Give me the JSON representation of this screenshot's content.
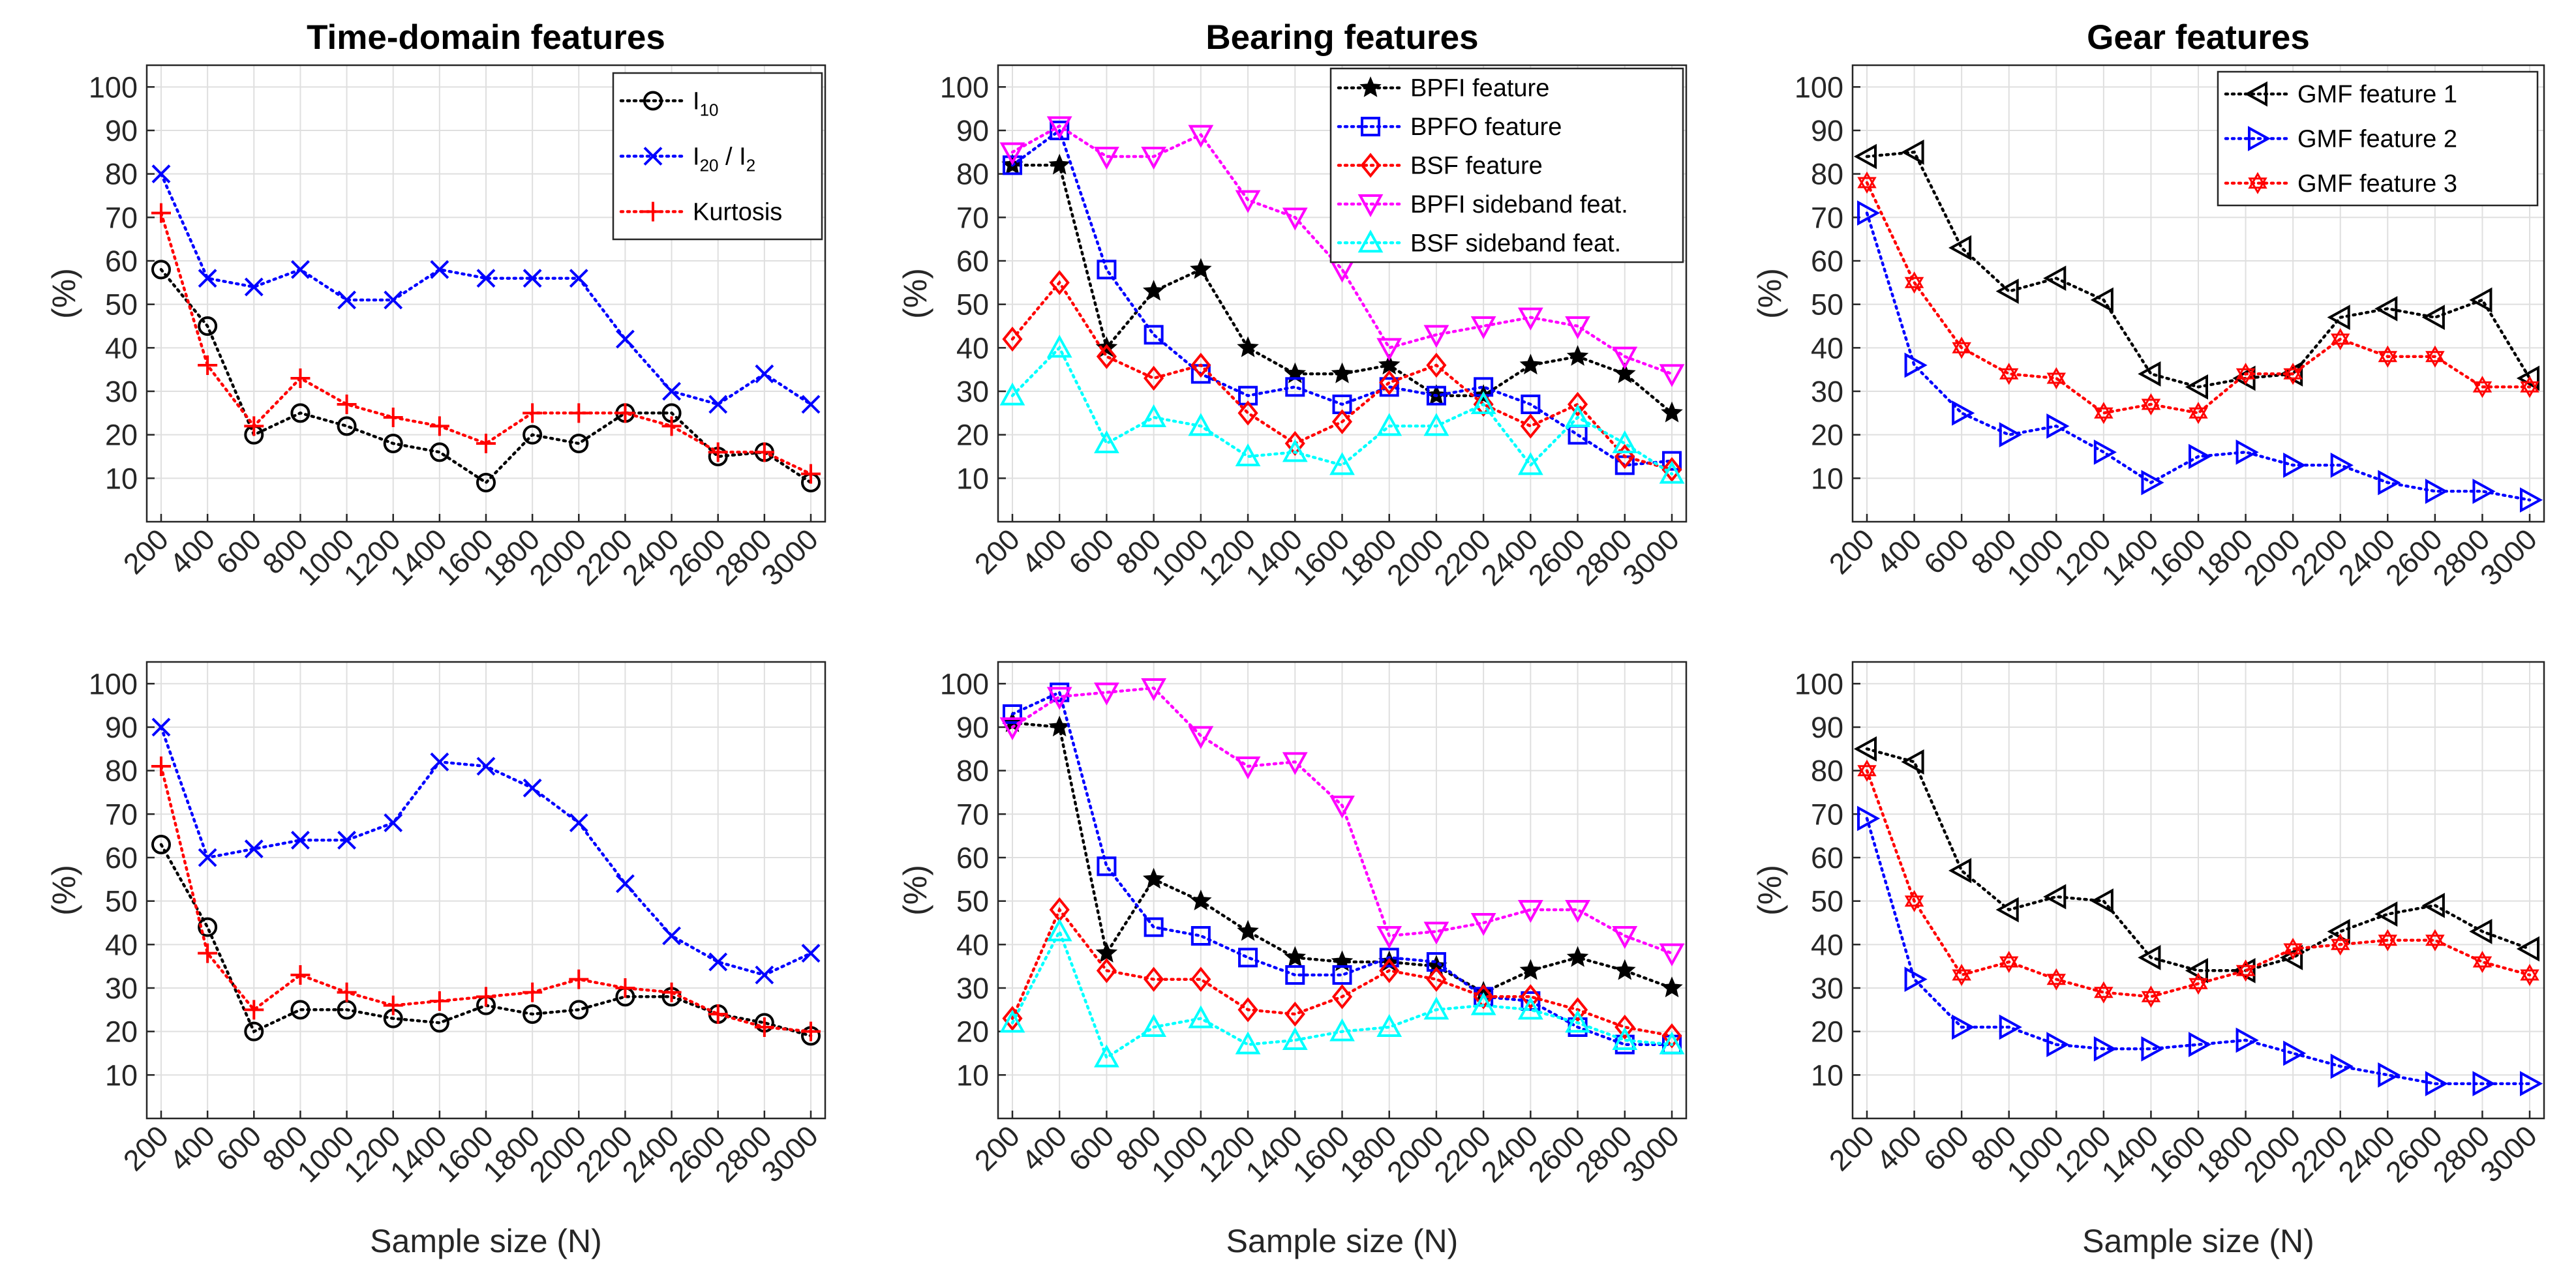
{
  "figure": {
    "xlabel": "Sample size (N)",
    "ylabel": "(%)"
  },
  "chart_data": [
    {
      "id": "time-top",
      "type": "line",
      "title": "Time-domain features",
      "xlabel": "",
      "ylabel": "(%)",
      "categories": [
        "200",
        "400",
        "600",
        "800",
        "1000",
        "1200",
        "1400",
        "1600",
        "1800",
        "2000",
        "2200",
        "2400",
        "2600",
        "2800",
        "3000"
      ],
      "yticks": [
        "10",
        "20",
        "30",
        "40",
        "50",
        "60",
        "70",
        "80",
        "90",
        "100"
      ],
      "ylim": [
        0,
        105
      ],
      "legend": "top-right",
      "series": [
        {
          "name": "I",
          "sub": "10",
          "rest": "",
          "sub2": "",
          "color": "#000000",
          "marker": "circle",
          "values": [
            58,
            45,
            20,
            25,
            22,
            18,
            16,
            9,
            20,
            18,
            25,
            25,
            15,
            16,
            9
          ]
        },
        {
          "name": "I",
          "sub": "20",
          "rest": " / I",
          "sub2": "2",
          "color": "#0000FF",
          "marker": "x",
          "values": [
            80,
            56,
            54,
            58,
            51,
            51,
            58,
            56,
            56,
            56,
            42,
            30,
            27,
            34,
            27
          ]
        },
        {
          "name": "Kurtosis",
          "sub": "",
          "rest": "",
          "sub2": "",
          "color": "#FF0000",
          "marker": "plus",
          "values": [
            71,
            36,
            22,
            33,
            27,
            24,
            22,
            18,
            25,
            25,
            25,
            22,
            16,
            16,
            11
          ]
        }
      ]
    },
    {
      "id": "bearing-top",
      "type": "line",
      "title": "Bearing features",
      "xlabel": "",
      "ylabel": "(%)",
      "categories": [
        "200",
        "400",
        "600",
        "800",
        "1000",
        "1200",
        "1400",
        "1600",
        "1800",
        "2000",
        "2200",
        "2400",
        "2600",
        "2800",
        "3000"
      ],
      "yticks": [
        "10",
        "20",
        "30",
        "40",
        "50",
        "60",
        "70",
        "80",
        "90",
        "100"
      ],
      "ylim": [
        0,
        105
      ],
      "legend": "top-right",
      "series": [
        {
          "name": "BPFI feature",
          "color": "#000000",
          "marker": "star",
          "values": [
            82,
            82,
            40,
            53,
            58,
            40,
            34,
            34,
            36,
            29,
            29,
            36,
            38,
            34,
            25
          ]
        },
        {
          "name": "BPFO feature",
          "color": "#0000FF",
          "marker": "square",
          "values": [
            82,
            90,
            58,
            43,
            34,
            29,
            31,
            27,
            31,
            29,
            31,
            27,
            20,
            13,
            14
          ]
        },
        {
          "name": "BSF feature",
          "color": "#FF0000",
          "marker": "diamond",
          "values": [
            42,
            55,
            38,
            33,
            36,
            25,
            18,
            23,
            32,
            36,
            27,
            22,
            27,
            15,
            12
          ]
        },
        {
          "name": "BPFI sideband feat.",
          "color": "#FF00FF",
          "marker": "triangle-down",
          "values": [
            85,
            91,
            84,
            84,
            89,
            74,
            70,
            58,
            40,
            43,
            45,
            47,
            45,
            38,
            34
          ]
        },
        {
          "name": "BSF sideband feat.",
          "color": "#00FFFF",
          "marker": "triangle-up",
          "values": [
            29,
            40,
            18,
            24,
            22,
            15,
            16,
            13,
            22,
            22,
            27,
            13,
            24,
            18,
            11
          ]
        }
      ]
    },
    {
      "id": "gear-top",
      "type": "line",
      "title": "Gear features",
      "xlabel": "",
      "ylabel": "(%)",
      "categories": [
        "200",
        "400",
        "600",
        "800",
        "1000",
        "1200",
        "1400",
        "1600",
        "1800",
        "2000",
        "2200",
        "2400",
        "2600",
        "2800",
        "3000"
      ],
      "yticks": [
        "10",
        "20",
        "30",
        "40",
        "50",
        "60",
        "70",
        "80",
        "90",
        "100"
      ],
      "ylim": [
        0,
        105
      ],
      "legend": "top-right",
      "series": [
        {
          "name": "GMF feature 1",
          "color": "#000000",
          "marker": "triangle-left",
          "values": [
            84,
            85,
            63,
            53,
            56,
            51,
            34,
            31,
            33,
            34,
            47,
            49,
            47,
            51,
            33
          ]
        },
        {
          "name": "GMF feature 2",
          "color": "#0000FF",
          "marker": "triangle-right",
          "values": [
            71,
            36,
            25,
            20,
            22,
            16,
            9,
            15,
            16,
            13,
            13,
            9,
            7,
            7,
            5
          ]
        },
        {
          "name": "GMF feature 3",
          "color": "#FF0000",
          "marker": "hexagram",
          "values": [
            78,
            55,
            40,
            34,
            33,
            25,
            27,
            25,
            34,
            34,
            42,
            38,
            38,
            31,
            31
          ]
        }
      ]
    },
    {
      "id": "time-bottom",
      "type": "line",
      "title": "",
      "xlabel": "Sample size (N)",
      "ylabel": "(%)",
      "categories": [
        "200",
        "400",
        "600",
        "800",
        "1000",
        "1200",
        "1400",
        "1600",
        "1800",
        "2000",
        "2200",
        "2400",
        "2600",
        "2800",
        "3000"
      ],
      "yticks": [
        "10",
        "20",
        "30",
        "40",
        "50",
        "60",
        "70",
        "80",
        "90",
        "100"
      ],
      "ylim": [
        0,
        105
      ],
      "legend": "none",
      "series": [
        {
          "name": "I10",
          "color": "#000000",
          "marker": "circle",
          "values": [
            63,
            44,
            20,
            25,
            25,
            23,
            22,
            26,
            24,
            25,
            28,
            28,
            24,
            22,
            19
          ]
        },
        {
          "name": "I20 / I2",
          "color": "#0000FF",
          "marker": "x",
          "values": [
            90,
            60,
            62,
            64,
            64,
            68,
            82,
            81,
            76,
            68,
            54,
            42,
            36,
            33,
            38
          ]
        },
        {
          "name": "Kurtosis",
          "color": "#FF0000",
          "marker": "plus",
          "values": [
            81,
            38,
            25,
            33,
            29,
            26,
            27,
            28,
            29,
            32,
            30,
            29,
            24,
            21,
            20
          ]
        }
      ]
    },
    {
      "id": "bearing-bottom",
      "type": "line",
      "title": "",
      "xlabel": "Sample size (N)",
      "ylabel": "(%)",
      "categories": [
        "200",
        "400",
        "600",
        "800",
        "1000",
        "1200",
        "1400",
        "1600",
        "1800",
        "2000",
        "2200",
        "2400",
        "2600",
        "2800",
        "3000"
      ],
      "yticks": [
        "10",
        "20",
        "30",
        "40",
        "50",
        "60",
        "70",
        "80",
        "90",
        "100"
      ],
      "ylim": [
        0,
        105
      ],
      "legend": "none",
      "series": [
        {
          "name": "BPFI feature",
          "color": "#000000",
          "marker": "star",
          "values": [
            91,
            90,
            38,
            55,
            50,
            43,
            37,
            36,
            36,
            35,
            29,
            34,
            37,
            34,
            30
          ]
        },
        {
          "name": "BPFO feature",
          "color": "#0000FF",
          "marker": "square",
          "values": [
            93,
            98,
            58,
            44,
            42,
            37,
            33,
            33,
            37,
            36,
            28,
            27,
            21,
            17,
            17
          ]
        },
        {
          "name": "BSF feature",
          "color": "#FF0000",
          "marker": "diamond",
          "values": [
            23,
            48,
            34,
            32,
            32,
            25,
            24,
            28,
            34,
            32,
            28,
            28,
            25,
            21,
            19
          ]
        },
        {
          "name": "BPFI sideband feat.",
          "color": "#FF00FF",
          "marker": "triangle-down",
          "values": [
            90,
            97,
            98,
            99,
            88,
            81,
            82,
            72,
            42,
            43,
            45,
            48,
            48,
            42,
            38
          ]
        },
        {
          "name": "BSF sideband feat.",
          "color": "#00FFFF",
          "marker": "triangle-up",
          "values": [
            22,
            43,
            14,
            21,
            23,
            17,
            18,
            20,
            21,
            25,
            26,
            25,
            22,
            18,
            17
          ]
        }
      ]
    },
    {
      "id": "gear-bottom",
      "type": "line",
      "title": "",
      "xlabel": "Sample size (N)",
      "ylabel": "(%)",
      "categories": [
        "200",
        "400",
        "600",
        "800",
        "1000",
        "1200",
        "1400",
        "1600",
        "1800",
        "2000",
        "2200",
        "2400",
        "2600",
        "2800",
        "3000"
      ],
      "yticks": [
        "10",
        "20",
        "30",
        "40",
        "50",
        "60",
        "70",
        "80",
        "90",
        "100"
      ],
      "ylim": [
        0,
        105
      ],
      "legend": "none",
      "series": [
        {
          "name": "GMF feature 1",
          "color": "#000000",
          "marker": "triangle-left",
          "values": [
            85,
            82,
            57,
            48,
            51,
            50,
            37,
            34,
            34,
            37,
            43,
            47,
            49,
            43,
            39
          ]
        },
        {
          "name": "GMF feature 2",
          "color": "#0000FF",
          "marker": "triangle-right",
          "values": [
            69,
            32,
            21,
            21,
            17,
            16,
            16,
            17,
            18,
            15,
            12,
            10,
            8,
            8,
            8
          ]
        },
        {
          "name": "GMF feature 3",
          "color": "#FF0000",
          "marker": "hexagram",
          "values": [
            80,
            50,
            33,
            36,
            32,
            29,
            28,
            31,
            34,
            39,
            40,
            41,
            41,
            36,
            33
          ]
        }
      ]
    }
  ]
}
